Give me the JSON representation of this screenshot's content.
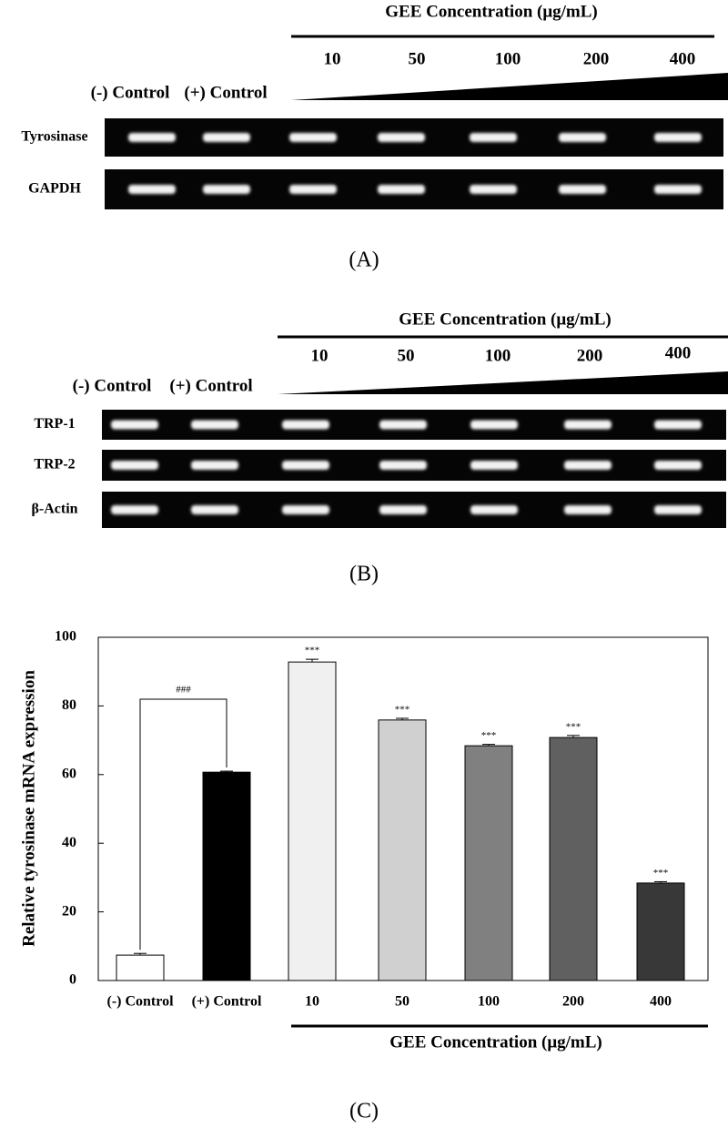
{
  "panel_a": {
    "label": "(A)",
    "concentration_title": "GEE Concentration (μg/mL)",
    "concentrations": [
      "10",
      "50",
      "100",
      "200",
      "400"
    ],
    "controls": [
      "(-) Control",
      "(+) Control"
    ],
    "genes": [
      "Tyrosinase",
      "GAPDH"
    ]
  },
  "panel_b": {
    "label": "(B)",
    "concentration_title": "GEE Concentration (μg/mL)",
    "concentrations": [
      "10",
      "50",
      "100",
      "200",
      "400"
    ],
    "controls": [
      "(-) Control",
      "(+) Control"
    ],
    "genes": [
      "TRP-1",
      "TRP-2",
      "β-Actin"
    ]
  },
  "chart_data": {
    "type": "bar",
    "panel_label": "(C)",
    "ylabel": "Relative tyrosinase mRNA expression",
    "xlabel": "GEE Concentration (μg/mL)",
    "categories": [
      "(-) Control",
      "(+) Control",
      "10",
      "50",
      "100",
      "200",
      "400"
    ],
    "values": [
      7.4,
      60.7,
      92.8,
      75.9,
      68.4,
      70.8,
      28.4
    ],
    "errors": [
      0.5,
      0.3,
      0.8,
      0.5,
      0.4,
      0.6,
      0.4
    ],
    "colors": [
      "#ffffff",
      "#000000",
      "#f0f0f0",
      "#d0d0d0",
      "#808080",
      "#606060",
      "#383838"
    ],
    "annotations": [
      null,
      null,
      "***",
      "***",
      "***",
      "***",
      "***"
    ],
    "bracket_label": "###",
    "ylim": [
      0,
      100
    ],
    "yticks": [
      0,
      20,
      40,
      60,
      80,
      100
    ]
  }
}
